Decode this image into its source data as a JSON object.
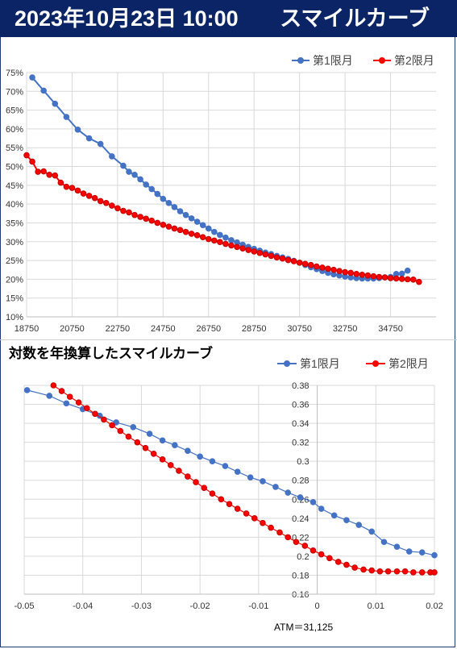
{
  "header": {
    "date": "2023年10月23日 10:00",
    "title": "スマイルカーブ"
  },
  "chart_data": [
    {
      "type": "line",
      "title": "",
      "xlabel": "",
      "ylabel": "",
      "xlim": [
        18750,
        36750
      ],
      "ylim": [
        0.1,
        0.75
      ],
      "x_ticks": [
        18750,
        20750,
        22750,
        24750,
        26750,
        28750,
        30750,
        32750,
        34750
      ],
      "y_ticks": [
        0.1,
        0.15,
        0.2,
        0.25,
        0.3,
        0.35,
        0.4,
        0.45,
        0.5,
        0.55,
        0.6,
        0.65,
        0.7,
        0.75
      ],
      "y_tick_labels": [
        "10%",
        "15%",
        "20%",
        "25%",
        "30%",
        "35%",
        "40%",
        "45%",
        "50%",
        "55%",
        "60%",
        "65%",
        "70%",
        "75%"
      ],
      "legend_position": "top-right",
      "grid": true,
      "series": [
        {
          "name": "第1限月",
          "color": "#4472c4",
          "x": [
            19000,
            19500,
            20000,
            20500,
            21000,
            21500,
            22000,
            22500,
            23000,
            23250,
            23500,
            23750,
            24000,
            24250,
            24500,
            24750,
            25000,
            25250,
            25500,
            25750,
            26000,
            26250,
            26500,
            26750,
            27000,
            27250,
            27500,
            27750,
            28000,
            28250,
            28500,
            28750,
            29000,
            29250,
            29500,
            29750,
            30000,
            30250,
            30500,
            30750,
            31000,
            31250,
            31500,
            31750,
            32000,
            32250,
            32500,
            32750,
            33000,
            33250,
            33500,
            33750,
            34000,
            34250,
            34500,
            34750,
            35000,
            35250,
            35500
          ],
          "y": [
            0.737,
            0.702,
            0.667,
            0.632,
            0.598,
            0.575,
            0.56,
            0.527,
            0.502,
            0.486,
            0.478,
            0.466,
            0.452,
            0.44,
            0.427,
            0.414,
            0.403,
            0.392,
            0.381,
            0.371,
            0.362,
            0.353,
            0.344,
            0.335,
            0.326,
            0.318,
            0.311,
            0.304,
            0.298,
            0.292,
            0.286,
            0.281,
            0.276,
            0.271,
            0.267,
            0.262,
            0.258,
            0.254,
            0.249,
            0.244,
            0.238,
            0.232,
            0.227,
            0.222,
            0.217,
            0.213,
            0.21,
            0.207,
            0.205,
            0.203,
            0.202,
            0.202,
            0.202,
            0.203,
            0.205,
            0.206,
            0.214,
            0.215,
            0.223
          ]
        },
        {
          "name": "第2限月",
          "color": "#ff0000",
          "x": [
            18750,
            19000,
            19250,
            19500,
            19750,
            20000,
            20250,
            20500,
            20750,
            21000,
            21250,
            21500,
            21750,
            22000,
            22250,
            22500,
            22750,
            23000,
            23250,
            23500,
            23750,
            24000,
            24250,
            24500,
            24750,
            25000,
            25250,
            25500,
            25750,
            26000,
            26250,
            26500,
            26750,
            27000,
            27250,
            27500,
            27750,
            28000,
            28250,
            28500,
            28750,
            29000,
            29250,
            29500,
            29750,
            30000,
            30250,
            30500,
            30750,
            31000,
            31250,
            31500,
            31750,
            32000,
            32250,
            32500,
            32750,
            33000,
            33250,
            33500,
            33750,
            34000,
            34250,
            34500,
            34750,
            35000,
            35250,
            35500,
            35750,
            36000
          ],
          "y": [
            0.53,
            0.513,
            0.486,
            0.487,
            0.478,
            0.476,
            0.457,
            0.446,
            0.443,
            0.436,
            0.428,
            0.422,
            0.416,
            0.408,
            0.403,
            0.396,
            0.389,
            0.382,
            0.378,
            0.371,
            0.366,
            0.361,
            0.356,
            0.35,
            0.345,
            0.34,
            0.335,
            0.331,
            0.326,
            0.321,
            0.317,
            0.312,
            0.307,
            0.303,
            0.299,
            0.294,
            0.29,
            0.286,
            0.282,
            0.278,
            0.274,
            0.27,
            0.266,
            0.262,
            0.258,
            0.255,
            0.251,
            0.248,
            0.244,
            0.241,
            0.238,
            0.234,
            0.231,
            0.228,
            0.225,
            0.222,
            0.219,
            0.217,
            0.214,
            0.212,
            0.21,
            0.208,
            0.206,
            0.205,
            0.203,
            0.202,
            0.201,
            0.2,
            0.199,
            0.193
          ]
        }
      ]
    },
    {
      "type": "scatter",
      "title": "対数を年換算したスマイルカーブ",
      "xlabel": "",
      "ylabel": "",
      "xlim": [
        -0.05,
        0.02
      ],
      "ylim": [
        0.16,
        0.38
      ],
      "x_ticks": [
        -0.05,
        -0.04,
        -0.03,
        -0.02,
        -0.01,
        0,
        0.01,
        0.02
      ],
      "x_tick_labels": [
        "-0.05",
        "-0.04",
        "-0.03",
        "-0.02",
        "-0.01",
        "0",
        "0.01",
        "0.02"
      ],
      "y_ticks": [
        0.16,
        0.18,
        0.2,
        0.22,
        0.24,
        0.26,
        0.28,
        0.3,
        0.32,
        0.34,
        0.36,
        0.38
      ],
      "y_tick_labels": [
        "0.16",
        "0.18",
        "0.2",
        "0.22",
        "0.24",
        "0.26",
        "0.28",
        "0.3",
        "0.32",
        "0.34",
        "0.36",
        "0.38"
      ],
      "legend_position": "top-right",
      "grid": true,
      "annotation": "ATM＝31,125",
      "series": [
        {
          "name": "第1限月",
          "color": "#4472c4",
          "x": [
            -0.0495,
            -0.0457,
            -0.0428,
            -0.04,
            -0.0371,
            -0.0343,
            -0.0314,
            -0.0286,
            -0.0264,
            -0.0243,
            -0.0221,
            -0.02,
            -0.0179,
            -0.0157,
            -0.0136,
            -0.0114,
            -0.0093,
            -0.0071,
            -0.005,
            -0.0029,
            -0.0007,
            0.0007,
            0.0029,
            0.005,
            0.0071,
            0.0093,
            0.0114,
            0.0136,
            0.0157,
            0.0179,
            0.02
          ],
          "y": [
            0.375,
            0.369,
            0.361,
            0.355,
            0.348,
            0.341,
            0.336,
            0.329,
            0.322,
            0.317,
            0.311,
            0.305,
            0.3,
            0.295,
            0.289,
            0.283,
            0.279,
            0.273,
            0.267,
            0.262,
            0.257,
            0.25,
            0.243,
            0.238,
            0.233,
            0.226,
            0.215,
            0.21,
            0.205,
            0.204,
            0.201
          ]
        },
        {
          "name": "第2限月",
          "color": "#ff0000",
          "x": [
            -0.045,
            -0.0436,
            -0.0422,
            -0.0407,
            -0.0393,
            -0.0379,
            -0.0364,
            -0.035,
            -0.0336,
            -0.0322,
            -0.0307,
            -0.0293,
            -0.0279,
            -0.0264,
            -0.025,
            -0.0236,
            -0.0221,
            -0.0207,
            -0.0193,
            -0.0179,
            -0.0164,
            -0.015,
            -0.0136,
            -0.0121,
            -0.0107,
            -0.0093,
            -0.0079,
            -0.0064,
            -0.005,
            -0.0036,
            -0.0021,
            -0.0007,
            0.0007,
            0.0021,
            0.0036,
            0.005,
            0.0064,
            0.0079,
            0.0093,
            0.0107,
            0.0121,
            0.0136,
            0.015,
            0.0164,
            0.0179,
            0.0193,
            0.02
          ],
          "y": [
            0.38,
            0.374,
            0.368,
            0.362,
            0.356,
            0.35,
            0.344,
            0.338,
            0.332,
            0.326,
            0.32,
            0.314,
            0.308,
            0.302,
            0.296,
            0.29,
            0.284,
            0.278,
            0.272,
            0.266,
            0.26,
            0.255,
            0.25,
            0.245,
            0.24,
            0.235,
            0.23,
            0.225,
            0.22,
            0.215,
            0.211,
            0.206,
            0.202,
            0.198,
            0.194,
            0.191,
            0.188,
            0.186,
            0.185,
            0.184,
            0.184,
            0.184,
            0.184,
            0.183,
            0.183,
            0.183,
            0.183
          ]
        }
      ]
    }
  ]
}
